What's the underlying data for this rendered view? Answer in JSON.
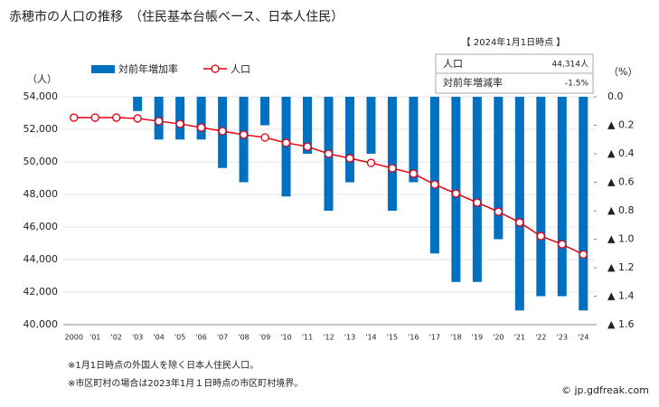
{
  "chart_data": {
    "type": "bar-line",
    "title": "赤穂市の人口の推移　（住民基本台帳ベース、日本人住民）",
    "y_label": "（人）",
    "y2_label": "（%）",
    "categories": [
      "2000",
      "'01",
      "'02",
      "'03",
      "'04",
      "'05",
      "'06",
      "'07",
      "'08",
      "'09",
      "'10",
      "'11",
      "'12",
      "'13",
      "'14",
      "'15",
      "'16",
      "'17",
      "'18",
      "'19",
      "'20",
      "'21",
      "'22",
      "'23",
      "'24"
    ],
    "series": [
      {
        "name": "対前年増加率",
        "type": "bar",
        "axis": "y2",
        "color": "#0070c0",
        "values": [
          null,
          0,
          0,
          -0.1,
          -0.3,
          -0.3,
          -0.3,
          -0.5,
          -0.6,
          -0.2,
          -0.7,
          -0.4,
          -0.8,
          -0.6,
          -0.4,
          -0.8,
          -0.6,
          -1.1,
          -1.3,
          -1.3,
          -1.0,
          -1.5,
          -1.4,
          -1.4,
          -1.5
        ]
      },
      {
        "name": "人口",
        "type": "line",
        "axis": "y",
        "color": "#e60012",
        "values": [
          52720,
          52720,
          52720,
          52670,
          52500,
          52330,
          52110,
          51890,
          51670,
          51500,
          51170,
          50940,
          50500,
          50220,
          49940,
          49610,
          49280,
          48610,
          48060,
          47500,
          46940,
          46280,
          45440,
          44940,
          44314
        ]
      }
    ],
    "ylim": [
      40000,
      54000
    ],
    "yticks": [
      {
        "value": 40000,
        "label": "40,000"
      },
      {
        "value": 42000,
        "label": "42,000"
      },
      {
        "value": 44000,
        "label": "44,000"
      },
      {
        "value": 46000,
        "label": "46,000"
      },
      {
        "value": 48000,
        "label": "48,000"
      },
      {
        "value": 50000,
        "label": "50,000"
      },
      {
        "value": 52000,
        "label": "52,000"
      },
      {
        "value": 54000,
        "label": "54,000"
      }
    ],
    "y2lim": [
      -1.6,
      0
    ],
    "y2ticks": [
      {
        "value": 0,
        "label": "0.0"
      },
      {
        "value": -0.2,
        "label": "▲ 0.2"
      },
      {
        "value": -0.4,
        "label": "▲ 0.4"
      },
      {
        "value": -0.6,
        "label": "▲ 0.6"
      },
      {
        "value": -0.8,
        "label": "▲ 0.8"
      },
      {
        "value": -1.0,
        "label": "▲ 1.0"
      },
      {
        "value": -1.2,
        "label": "▲ 1.2"
      },
      {
        "value": -1.4,
        "label": "▲ 1.4"
      },
      {
        "value": -1.6,
        "label": "▲ 1.6"
      }
    ],
    "grid": true,
    "info_box": {
      "title": "【 2024年1月1日時点 】",
      "rows": [
        [
          "人口",
          "44,314人"
        ],
        [
          "対前年増減率",
          "-1.5%"
        ]
      ]
    },
    "notes": [
      "※1月1日時点の外国人を除く日本人住民人口。",
      "※市区町村の場合は2023年1月１日時点の市区町村境界。"
    ],
    "source": "© jp.gdfreak.com"
  }
}
